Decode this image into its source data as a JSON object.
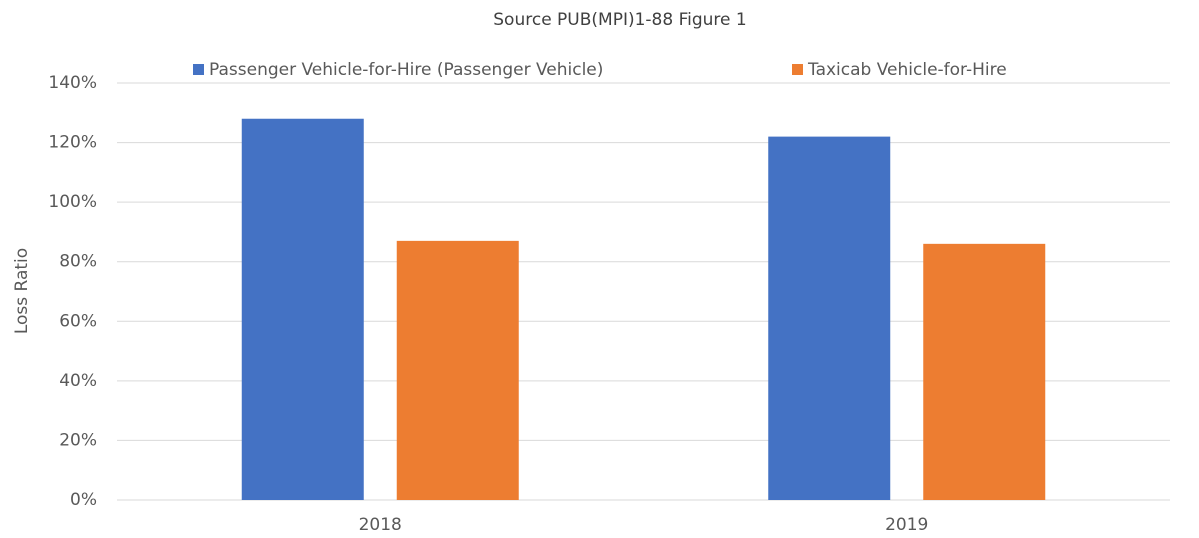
{
  "chart_data": {
    "type": "bar",
    "title": "Source PUB(MPI)1-88 Figure 1",
    "y_label": "Loss Ratio",
    "categories": [
      "2018",
      "2019"
    ],
    "series": [
      {
        "name": "Passenger Vehicle-for-Hire (Passenger Vehicle)",
        "color": "#4472c4",
        "values": [
          128,
          122
        ]
      },
      {
        "name": "Taxicab Vehicle-for-Hire",
        "color": "#ed7d31",
        "values": [
          87,
          86
        ]
      }
    ],
    "ylim": [
      0,
      140
    ],
    "yticks": [
      {
        "value": 0,
        "label": "0%"
      },
      {
        "value": 20,
        "label": "20%"
      },
      {
        "value": 40,
        "label": "40%"
      },
      {
        "value": 60,
        "label": "60%"
      },
      {
        "value": 80,
        "label": "80%"
      },
      {
        "value": 100,
        "label": "100%"
      },
      {
        "value": 120,
        "label": "120%"
      },
      {
        "value": 140,
        "label": "140%"
      }
    ],
    "grid": true,
    "legend": "top"
  }
}
